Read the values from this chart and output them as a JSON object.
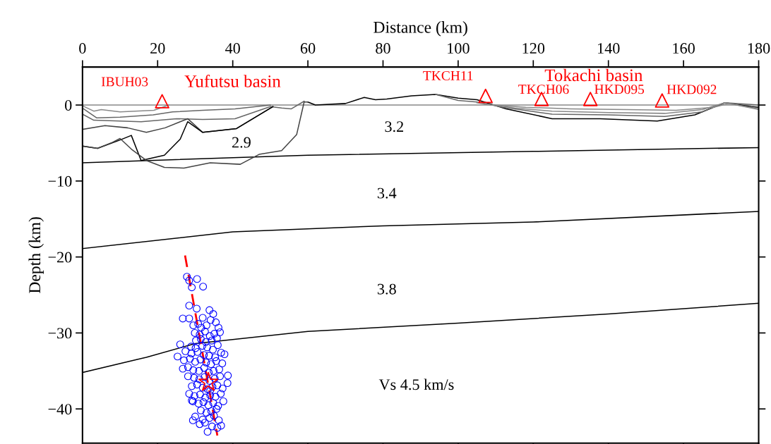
{
  "chart_data": {
    "type": "line",
    "xlabel": "Distance (km)",
    "ylabel": "Depth (km)",
    "xlim": [
      0,
      180
    ],
    "xticks": [
      0,
      20,
      40,
      60,
      80,
      100,
      120,
      140,
      160,
      180
    ],
    "ylim": [
      -44.5,
      5
    ],
    "yticks": [
      {
        "value": 0,
        "label": "0"
      },
      {
        "value": -10,
        "label": "−10"
      },
      {
        "value": -20,
        "label": "−20"
      },
      {
        "value": -30,
        "label": "−30"
      },
      {
        "value": -40,
        "label": "−40"
      }
    ],
    "grid": false,
    "legend": false,
    "series": [
      {
        "type": "line",
        "color": "#000000",
        "x": [
          0,
          60,
          120,
          180
        ],
        "values": [
          -7.6,
          -6.6,
          -6.1,
          -5.6
        ]
      },
      {
        "type": "line",
        "color": "#000000",
        "x": [
          0,
          40,
          80,
          120,
          180
        ],
        "values": [
          -18.9,
          -16.7,
          -15.9,
          -15.4,
          -14.0
        ]
      },
      {
        "type": "line",
        "color": "#000000",
        "x": [
          0,
          17,
          30,
          60,
          100,
          140,
          180
        ],
        "values": [
          -35.2,
          -33.2,
          -31.4,
          -29.8,
          -28.7,
          -27.5,
          -26.1
        ]
      },
      {
        "type": "line",
        "color": "#888888",
        "x": [
          0,
          60,
          110,
          170,
          180
        ],
        "values": [
          0,
          0,
          0,
          0,
          0
        ]
      },
      {
        "type": "line",
        "color": "#000000",
        "x": [
          60,
          62,
          70,
          75,
          78,
          81,
          87.6,
          94,
          100,
          105,
          112.8,
          125,
          137.8,
          153,
          163,
          171,
          178,
          180
        ],
        "values": [
          0.4,
          0,
          0.2,
          1.0,
          0.7,
          0.8,
          1.2,
          1.4,
          0.9,
          0.7,
          -0.5,
          -1.8,
          -1.8,
          -2.1,
          -1.3,
          0.3,
          -0.2,
          -0.3
        ]
      },
      {
        "type": "line",
        "color": "#666666",
        "x": [
          94,
          100,
          105,
          112,
          125,
          140,
          155,
          165,
          171,
          180
        ],
        "values": [
          1.4,
          0.6,
          0.4,
          -0.3,
          -1.2,
          -1.3,
          -1.5,
          -0.9,
          0.3,
          0
        ]
      },
      {
        "type": "line",
        "color": "#888888",
        "x": [
          105,
          115,
          125,
          140,
          155,
          165,
          171,
          180
        ],
        "values": [
          0.3,
          -0.4,
          -0.8,
          -1.0,
          -1.1,
          -0.6,
          0.3,
          -0.5
        ]
      },
      {
        "type": "line",
        "color": "#888888",
        "x": [
          107,
          118,
          130,
          145,
          158,
          168,
          172,
          180
        ],
        "values": [
          0.1,
          -0.3,
          -0.5,
          -0.6,
          -0.7,
          -0.3,
          0.2,
          -0.6
        ]
      },
      {
        "type": "line",
        "color": "#888888",
        "x": [
          0,
          3,
          5,
          10,
          19,
          23
        ],
        "values": [
          -0.1,
          -0.8,
          -0.6,
          -0.9,
          -0.7,
          0
        ]
      },
      {
        "type": "line",
        "color": "#666666",
        "x": [
          0,
          3.8,
          10,
          18.8,
          24,
          32,
          40.6,
          50
        ],
        "values": [
          -0.4,
          -1.7,
          -1.6,
          -1.3,
          -0.9,
          -0.7,
          -0.5,
          0
        ]
      },
      {
        "type": "line",
        "color": "#666666",
        "x": [
          0,
          3,
          15.6,
          25,
          32,
          40.6,
          50,
          53,
          55.6,
          59
        ],
        "values": [
          -1.2,
          -2.0,
          -2.2,
          -1.8,
          -1.9,
          -1.8,
          -0.2,
          -0.4,
          -0.5,
          0.5
        ]
      },
      {
        "type": "line",
        "color": "#444444",
        "x": [
          0,
          6,
          12,
          17,
          22,
          26,
          28,
          32,
          41,
          50.7
        ],
        "values": [
          -3.2,
          -2.7,
          -3.0,
          -3.6,
          -3.0,
          -2.2,
          -1.8,
          -3.6,
          -3.1,
          -0.2
        ]
      },
      {
        "type": "line",
        "color": "#000000",
        "x": [
          0,
          4,
          10,
          13,
          15.6,
          21.8,
          26,
          28,
          32,
          41,
          50.7
        ],
        "values": [
          -5.4,
          -5.7,
          -4.6,
          -4.0,
          -7.3,
          -6.6,
          -4.5,
          -2.2,
          -3.6,
          -3.1,
          -0.2
        ]
      },
      {
        "type": "line",
        "color": "#444444",
        "x": [
          0,
          4,
          8,
          10,
          13,
          17,
          21.8,
          27,
          34,
          42,
          47,
          53,
          57,
          59,
          60
        ],
        "values": [
          -5.4,
          -5.7,
          -4.9,
          -4.4,
          -5.8,
          -7.3,
          -8.2,
          -8.3,
          -7.6,
          -7.8,
          -6.5,
          -6.0,
          -3.9,
          0.4,
          0.4
        ]
      },
      {
        "type": "scatter",
        "marker": "circle",
        "color": "#0000ff",
        "x": [
          27.8,
          28.4,
          30.5,
          29.1,
          32.1,
          28.4,
          30.4,
          33.8,
          34.8,
          26.7,
          28.4,
          32.0,
          34.1,
          29.5,
          30.8,
          31.6,
          33.0,
          35.5,
          36.2,
          29.9,
          31.2,
          32.6,
          33.9,
          35.1,
          36.6,
          30.2,
          31.5,
          32.8,
          34.4,
          35.8,
          28.9,
          30.1,
          31.9,
          33.2,
          34.7,
          36.0,
          37.8,
          26.0,
          27.4,
          29.0,
          30.6,
          32.3,
          33.7,
          35.3,
          36.9,
          25.3,
          27.0,
          28.6,
          30.0,
          31.4,
          32.9,
          34.2,
          35.6,
          37.2,
          26.7,
          28.1,
          29.5,
          31.0,
          32.4,
          33.6,
          34.9,
          36.4,
          38.7,
          28.1,
          29.7,
          31.1,
          32.5,
          33.8,
          35.2,
          36.6,
          38.6,
          29.1,
          30.5,
          32.0,
          33.3,
          34.6,
          35.9,
          37.3,
          28.4,
          29.8,
          31.3,
          32.7,
          34.0,
          35.4,
          36.8,
          29.4,
          30.9,
          32.2,
          33.5,
          34.8,
          36.1,
          37.5,
          29.1,
          31.5,
          33.0,
          34.3,
          35.7,
          30.0,
          32.0,
          33.8,
          35.0,
          36.3,
          29.4,
          31.2,
          32.6,
          33.3,
          34.5,
          35.9,
          36.9,
          34.0
        ],
        "values": [
          -22.6,
          -23.1,
          -22.9,
          -24.0,
          -23.9,
          -26.4,
          -26.8,
          -27.0,
          -27.5,
          -28.1,
          -28.1,
          -28.0,
          -28.3,
          -29.0,
          -28.8,
          -29.3,
          -29.0,
          -28.6,
          -29.3,
          -30.0,
          -30.2,
          -29.8,
          -30.4,
          -30.1,
          -29.9,
          -31.0,
          -30.8,
          -31.2,
          -31.0,
          -30.7,
          -31.8,
          -32.0,
          -31.7,
          -31.9,
          -32.2,
          -31.6,
          -32.8,
          -31.5,
          -32.4,
          -32.7,
          -32.5,
          -32.9,
          -33.0,
          -33.2,
          -32.6,
          -33.1,
          -33.6,
          -33.4,
          -33.8,
          -33.5,
          -33.9,
          -34.1,
          -33.7,
          -34.0,
          -34.7,
          -34.5,
          -34.9,
          -35.0,
          -34.6,
          -35.2,
          -35.0,
          -34.8,
          -35.6,
          -35.7,
          -35.9,
          -36.1,
          -35.8,
          -36.3,
          -36.0,
          -35.7,
          -36.6,
          -37.0,
          -36.8,
          -37.2,
          -37.4,
          -37.1,
          -36.9,
          -37.3,
          -38.0,
          -38.3,
          -38.1,
          -38.5,
          -38.2,
          -38.4,
          -38.0,
          -39.0,
          -39.3,
          -39.1,
          -39.5,
          -39.2,
          -39.6,
          -39.0,
          -38.9,
          -40.2,
          -40.5,
          -40.3,
          -40.0,
          -41.0,
          -41.4,
          -41.2,
          -40.9,
          -41.5,
          -41.5,
          -42.0,
          -41.8,
          -43.0,
          -42.3,
          -42.5,
          -42.2,
          -37.6
        ]
      },
      {
        "type": "line",
        "line_style": "dashed",
        "color": "#ff0000",
        "x": [
          27.3,
          35.9
        ],
        "values": [
          -19.8,
          -43.5
        ]
      },
      {
        "type": "scatter",
        "marker": "star",
        "color": "#ff0000",
        "x": [
          33.5
        ],
        "values": [
          -36.5
        ]
      },
      {
        "type": "scatter",
        "marker": "triangle",
        "color": "#ff0000",
        "x": [
          21.2,
          107.3,
          122.2,
          135.2,
          154.3
        ],
        "values": [
          0.5,
          1.2,
          0.8,
          0.8,
          0.6
        ],
        "value_labels": [
          "IBUH03",
          "TKCH11",
          "TKCH06",
          "HKD095",
          "HKD092"
        ]
      }
    ],
    "annotations": [
      "Yufutsu basin",
      "Tokachi basin",
      "3.2",
      "2.9",
      "3.4",
      "3.8",
      "Vs 4.5 km/s"
    ]
  }
}
